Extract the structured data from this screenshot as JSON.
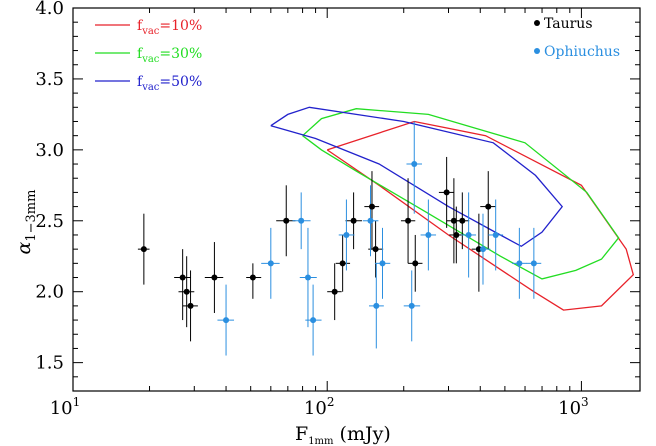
{
  "chart_data": {
    "type": "scatter",
    "title": "",
    "xlabel": {
      "main": "F",
      "sub": "1mm",
      "unit": " (mJy)"
    },
    "ylabel": {
      "main": "α",
      "sub": "1−3mm"
    },
    "x_scale": "log",
    "xlim": [
      10,
      1700
    ],
    "ylim": [
      1.3,
      4.0
    ],
    "x_ticks": [
      {
        "value": 10,
        "base": "10",
        "exp": "1"
      },
      {
        "value": 100,
        "base": "10",
        "exp": "2"
      },
      {
        "value": 1000,
        "base": "10",
        "exp": "3"
      }
    ],
    "y_ticks": [
      "1.5",
      "2.0",
      "2.5",
      "3.0",
      "3.5",
      "4.0"
    ],
    "grid": false,
    "legend_position": "top-left and top-right",
    "model_curves": [
      {
        "label_prefix": "f",
        "label_sub": "vac",
        "label_suffix": "=10%",
        "color": "#e8222a",
        "points": [
          [
            100,
            3.0
          ],
          [
            220,
            3.2
          ],
          [
            420,
            3.1
          ],
          [
            1000,
            2.75
          ],
          [
            1500,
            2.3
          ],
          [
            1600,
            2.12
          ],
          [
            1200,
            1.9
          ],
          [
            850,
            1.87
          ],
          [
            650,
            2.0
          ],
          [
            300,
            2.4
          ],
          [
            160,
            2.75
          ],
          [
            100,
            3.0
          ]
        ]
      },
      {
        "label_prefix": "f",
        "label_sub": "vac",
        "label_suffix": "=30%",
        "color": "#22dd22",
        "points": [
          [
            80,
            3.1
          ],
          [
            95,
            3.22
          ],
          [
            130,
            3.29
          ],
          [
            250,
            3.25
          ],
          [
            600,
            3.05
          ],
          [
            1050,
            2.7
          ],
          [
            1400,
            2.38
          ],
          [
            1200,
            2.23
          ],
          [
            950,
            2.15
          ],
          [
            700,
            2.09
          ],
          [
            480,
            2.25
          ],
          [
            240,
            2.57
          ],
          [
            130,
            2.85
          ],
          [
            95,
            3.0
          ],
          [
            80,
            3.1
          ]
        ]
      },
      {
        "label_prefix": "f",
        "label_sub": "vac",
        "label_suffix": "=50%",
        "color": "#2222cc",
        "points": [
          [
            60,
            3.17
          ],
          [
            70,
            3.25
          ],
          [
            85,
            3.3
          ],
          [
            200,
            3.2
          ],
          [
            450,
            3.05
          ],
          [
            660,
            2.82
          ],
          [
            840,
            2.6
          ],
          [
            700,
            2.42
          ],
          [
            580,
            2.32
          ],
          [
            480,
            2.4
          ],
          [
            300,
            2.6
          ],
          [
            160,
            2.9
          ],
          [
            90,
            3.08
          ],
          [
            60,
            3.17
          ]
        ]
      }
    ],
    "series": [
      {
        "name": "Taurus",
        "color": "#000000",
        "points": [
          {
            "x": 19,
            "y": 2.3,
            "xerr": [
              18,
              20
            ],
            "yerr": [
              2.05,
              2.55
            ]
          },
          {
            "x": 27,
            "y": 2.1,
            "xerr": [
              25,
              29
            ],
            "yerr": [
              1.8,
              2.3
            ]
          },
          {
            "x": 28,
            "y": 2.0,
            "xerr": [
              26,
              30
            ],
            "yerr": [
              1.75,
              2.25
            ]
          },
          {
            "x": 29,
            "y": 1.9,
            "xerr": [
              27,
              31
            ],
            "yerr": [
              1.65,
              2.15
            ]
          },
          {
            "x": 36,
            "y": 2.1,
            "xerr": [
              33,
              39
            ],
            "yerr": [
              1.85,
              2.35
            ]
          },
          {
            "x": 51,
            "y": 2.1,
            "xerr": [
              48,
              55
            ],
            "yerr": [
              1.95,
              2.2
            ]
          },
          {
            "x": 69,
            "y": 2.5,
            "xerr": [
              63,
              75
            ],
            "yerr": [
              2.25,
              2.75
            ]
          },
          {
            "x": 107,
            "y": 2.0,
            "xerr": [
              100,
              114
            ],
            "yerr": [
              1.8,
              2.2
            ]
          },
          {
            "x": 115,
            "y": 2.2,
            "xerr": [
              108,
              123
            ],
            "yerr": [
              2.0,
              2.4
            ]
          },
          {
            "x": 127,
            "y": 2.5,
            "xerr": [
              118,
              137
            ],
            "yerr": [
              2.3,
              2.7
            ]
          },
          {
            "x": 150,
            "y": 2.6,
            "xerr": [
              140,
              160
            ],
            "yerr": [
              2.3,
              2.85
            ]
          },
          {
            "x": 155,
            "y": 2.3,
            "xerr": [
              145,
              166
            ],
            "yerr": [
              2.1,
              2.5
            ]
          },
          {
            "x": 208,
            "y": 2.5,
            "xerr": [
              195,
              222
            ],
            "yerr": [
              2.2,
              2.8
            ]
          },
          {
            "x": 222,
            "y": 2.2,
            "xerr": [
              208,
              237
            ],
            "yerr": [
              2.0,
              2.4
            ]
          },
          {
            "x": 295,
            "y": 2.7,
            "xerr": [
              275,
              315
            ],
            "yerr": [
              2.45,
              2.95
            ]
          },
          {
            "x": 315,
            "y": 2.5,
            "xerr": [
              295,
              335
            ],
            "yerr": [
              2.2,
              2.8
            ]
          },
          {
            "x": 322,
            "y": 2.4,
            "xerr": [
              302,
              342
            ],
            "yerr": [
              2.2,
              2.6
            ]
          },
          {
            "x": 340,
            "y": 2.5,
            "xerr": [
              318,
              362
            ],
            "yerr": [
              2.3,
              2.7
            ]
          },
          {
            "x": 395,
            "y": 2.3,
            "xerr": [
              370,
              420
            ],
            "yerr": [
              2.0,
              2.55
            ]
          },
          {
            "x": 430,
            "y": 2.6,
            "xerr": [
              400,
              460
            ],
            "yerr": [
              2.3,
              2.85
            ]
          }
        ]
      },
      {
        "name": "Ophiuchus",
        "color": "#2b8fe0",
        "points": [
          {
            "x": 40,
            "y": 1.8,
            "xerr": [
              37,
              43
            ],
            "yerr": [
              1.55,
              2.05
            ]
          },
          {
            "x": 60,
            "y": 2.2,
            "xerr": [
              55,
              65
            ],
            "yerr": [
              1.95,
              2.45
            ]
          },
          {
            "x": 79,
            "y": 2.5,
            "xerr": [
              73,
              86
            ],
            "yerr": [
              2.3,
              2.7
            ]
          },
          {
            "x": 84,
            "y": 2.1,
            "xerr": [
              78,
              91
            ],
            "yerr": [
              1.75,
              2.45
            ]
          },
          {
            "x": 88,
            "y": 1.8,
            "xerr": [
              82,
              95
            ],
            "yerr": [
              1.55,
              2.05
            ]
          },
          {
            "x": 119,
            "y": 2.4,
            "xerr": [
              111,
              128
            ],
            "yerr": [
              2.15,
              2.65
            ]
          },
          {
            "x": 148,
            "y": 2.5,
            "xerr": [
              138,
              159
            ],
            "yerr": [
              2.25,
              2.75
            ]
          },
          {
            "x": 156,
            "y": 1.9,
            "xerr": [
              146,
              167
            ],
            "yerr": [
              1.6,
              2.2
            ]
          },
          {
            "x": 165,
            "y": 2.2,
            "xerr": [
              154,
              177
            ],
            "yerr": [
              1.95,
              2.45
            ]
          },
          {
            "x": 215,
            "y": 1.9,
            "xerr": [
              200,
              232
            ],
            "yerr": [
              1.65,
              2.15
            ]
          },
          {
            "x": 220,
            "y": 2.9,
            "xerr": [
              205,
              236
            ],
            "yerr": [
              2.55,
              3.2
            ]
          },
          {
            "x": 250,
            "y": 2.4,
            "xerr": [
              233,
              268
            ],
            "yerr": [
              2.15,
              2.65
            ]
          },
          {
            "x": 360,
            "y": 2.4,
            "xerr": [
              337,
              385
            ],
            "yerr": [
              2.1,
              2.7
            ]
          },
          {
            "x": 410,
            "y": 2.3,
            "xerr": [
              383,
              438
            ],
            "yerr": [
              2.05,
              2.55
            ]
          },
          {
            "x": 460,
            "y": 2.4,
            "xerr": [
              430,
              492
            ],
            "yerr": [
              2.15,
              2.65
            ]
          },
          {
            "x": 570,
            "y": 2.2,
            "xerr": [
              533,
              610
            ],
            "yerr": [
              1.95,
              2.45
            ]
          },
          {
            "x": 650,
            "y": 2.2,
            "xerr": [
              608,
              695
            ],
            "yerr": [
              1.95,
              2.45
            ]
          }
        ]
      }
    ]
  }
}
